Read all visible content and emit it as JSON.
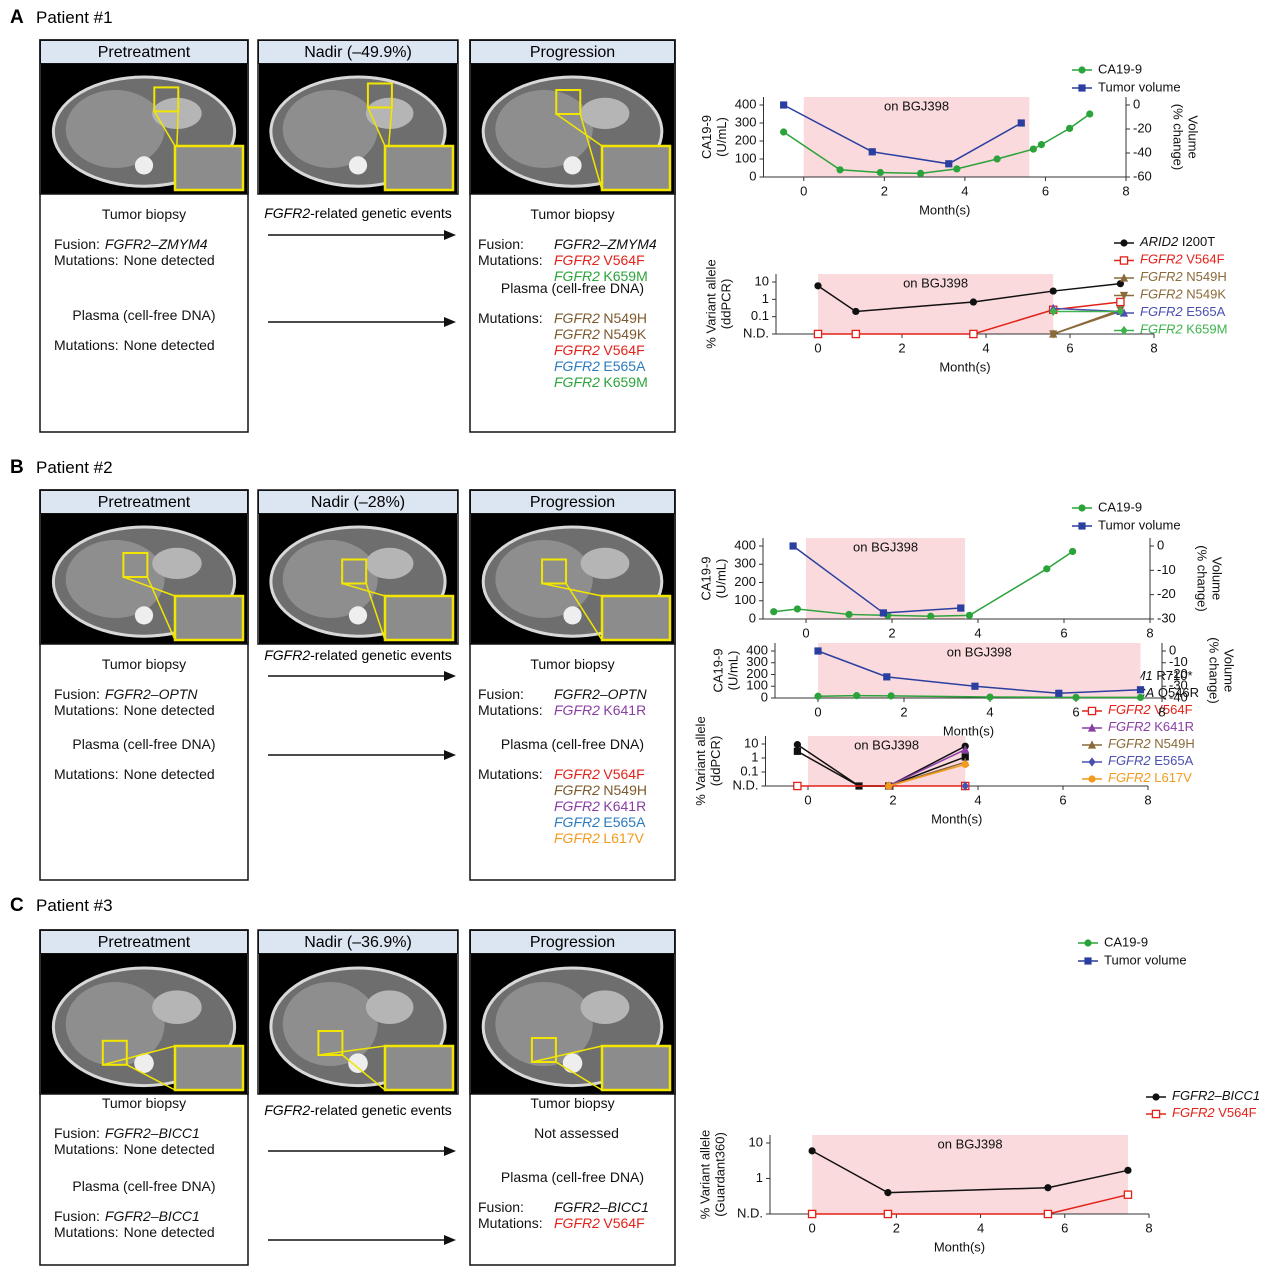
{
  "panels": [
    {
      "letter": "A",
      "title": "Patient #1",
      "stages": [
        "Pretreatment",
        "Nadir (–49.9%)",
        "Progression"
      ],
      "events": {
        "gene": "FGFR2",
        "text": "-related genetic events"
      },
      "before": {
        "biopsy": {
          "heading": "Tumor biopsy",
          "rows": [
            {
              "label": "Fusion:",
              "entries": [
                {
                  "gene": "FGFR2–ZMYM4"
                }
              ]
            },
            {
              "label": "Mutations:",
              "entries": [
                {
                  "text": "None detected"
                }
              ]
            }
          ]
        },
        "plasma": {
          "heading": "Plasma (cell-free DNA)",
          "rows": [
            {
              "label": "Mutations:",
              "entries": [
                {
                  "text": "None detected"
                }
              ]
            }
          ]
        }
      },
      "after": {
        "biopsy": {
          "heading": "Tumor biopsy",
          "rows": [
            {
              "label": "Fusion:",
              "entries": [
                {
                  "gene": "FGFR2–ZMYM4"
                }
              ]
            },
            {
              "label": "Mutations:",
              "entries": [
                {
                  "gene": "FGFR2",
                  "change": "V564F",
                  "color": "#e32119"
                },
                {
                  "gene": "FGFR2",
                  "change": "K659M",
                  "color": "#2aa33a"
                }
              ]
            }
          ]
        },
        "plasma": {
          "heading": "Plasma (cell-free DNA)",
          "rows": [
            {
              "label": "Mutations:",
              "entries": [
                {
                  "gene": "FGFR2",
                  "change": "N549H",
                  "color": "#7b5b2e"
                },
                {
                  "gene": "FGFR2",
                  "change": "N549K",
                  "color": "#7b5b2e"
                },
                {
                  "gene": "FGFR2",
                  "change": "V564F",
                  "color": "#e32119"
                },
                {
                  "gene": "FGFR2",
                  "change": "E565A",
                  "color": "#2b7bc1"
                },
                {
                  "gene": "FGFR2",
                  "change": "K659M",
                  "color": "#2aa33a"
                }
              ]
            }
          ]
        }
      }
    },
    {
      "letter": "B",
      "title": "Patient #2",
      "stages": [
        "Pretreatment",
        "Nadir (–28%)",
        "Progression"
      ],
      "events": {
        "gene": "FGFR2",
        "text": "-related genetic events"
      },
      "before": {
        "biopsy": {
          "heading": "Tumor biopsy",
          "rows": [
            {
              "label": "Fusion:",
              "entries": [
                {
                  "gene": "FGFR2–OPTN"
                }
              ]
            },
            {
              "label": "Mutations:",
              "entries": [
                {
                  "text": "None detected"
                }
              ]
            }
          ]
        },
        "plasma": {
          "heading": "Plasma (cell-free DNA)",
          "rows": [
            {
              "label": "Mutations:",
              "entries": [
                {
                  "text": "None detected"
                }
              ]
            }
          ]
        }
      },
      "after": {
        "biopsy": {
          "heading": "Tumor biopsy",
          "rows": [
            {
              "label": "Fusion:",
              "entries": [
                {
                  "gene": "FGFR2–OPTN"
                }
              ]
            },
            {
              "label": "Mutations:",
              "entries": [
                {
                  "gene": "FGFR2",
                  "change": "K641R",
                  "color": "#8a3ea5"
                }
              ]
            }
          ]
        },
        "plasma": {
          "heading": "Plasma (cell-free DNA)",
          "rows": [
            {
              "label": "Mutations:",
              "entries": [
                {
                  "gene": "FGFR2",
                  "change": "V564F",
                  "color": "#e32119"
                },
                {
                  "gene": "FGFR2",
                  "change": "N549H",
                  "color": "#7b5b2e"
                },
                {
                  "gene": "FGFR2",
                  "change": "K641R",
                  "color": "#8a3ea5"
                },
                {
                  "gene": "FGFR2",
                  "change": "E565A",
                  "color": "#2b7bc1"
                },
                {
                  "gene": "FGFR2",
                  "change": "L617V",
                  "color": "#f39a1e"
                }
              ]
            }
          ]
        }
      }
    },
    {
      "letter": "C",
      "title": "Patient #3",
      "stages": [
        "Pretreatment",
        "Nadir (–36.9%)",
        "Progression"
      ],
      "events": {
        "gene": "FGFR2",
        "text": "-related genetic events"
      },
      "before": {
        "biopsy": {
          "heading": "Tumor biopsy",
          "rows": [
            {
              "label": "Fusion:",
              "entries": [
                {
                  "gene": "FGFR2–BICC1"
                }
              ]
            },
            {
              "label": "Mutations:",
              "entries": [
                {
                  "text": "None detected"
                }
              ]
            }
          ]
        },
        "plasma": {
          "heading": "Plasma (cell-free DNA)",
          "rows": [
            {
              "label": "Fusion:",
              "entries": [
                {
                  "gene": "FGFR2–BICC1"
                }
              ]
            },
            {
              "label": "Mutations:",
              "entries": [
                {
                  "text": "None detected"
                }
              ]
            }
          ]
        }
      },
      "after": {
        "biopsy": {
          "heading": "Tumor biopsy",
          "rows": [
            {
              "entries": [
                {
                  "text": "Not assessed"
                }
              ]
            }
          ]
        },
        "plasma": {
          "heading": "Plasma (cell-free DNA)",
          "rows": [
            {
              "label": "Fusion:",
              "entries": [
                {
                  "gene": "FGFR2–BICC1"
                }
              ]
            },
            {
              "label": "Mutations:",
              "entries": [
                {
                  "gene": "FGFR2",
                  "change": "V564F",
                  "color": "#e32119"
                }
              ]
            }
          ]
        }
      }
    }
  ],
  "chart_data": [
    {
      "type": "line",
      "xlabel": "Month(s)",
      "ylabel": [
        "CA19-9",
        "(U/mL)"
      ],
      "y2label": [
        "Volume",
        "(% change)"
      ],
      "xlim": [
        -1,
        8
      ],
      "xticks": [
        0,
        2,
        4,
        6,
        8
      ],
      "ylim": [
        0,
        400
      ],
      "yticks": [
        0,
        100,
        200,
        300,
        400
      ],
      "y2lim": [
        -60,
        0
      ],
      "y2ticks": [
        0,
        -20,
        -40,
        -60
      ],
      "shade": {
        "label": "on BGJ398",
        "x": [
          0,
          5.6
        ],
        "color": "#fadadd"
      },
      "series": [
        {
          "name": "CA19-9",
          "color": "#2aa33a",
          "marker": "circle",
          "x": [
            -0.5,
            0.9,
            1.9,
            2.9,
            3.8,
            4.8,
            5.7,
            5.9,
            6.6,
            7.1
          ],
          "values": [
            250,
            40,
            25,
            20,
            45,
            100,
            155,
            180,
            270,
            350
          ]
        },
        {
          "name": "Tumor volume",
          "color": "#2b3fa0",
          "marker": "square",
          "axis": "y2",
          "x": [
            -0.5,
            1.7,
            3.6,
            5.4
          ],
          "values": [
            0,
            -39,
            -49,
            -15
          ]
        }
      ]
    },
    {
      "type": "line",
      "log_scale": true,
      "legend_genes": true,
      "xlabel": "Month(s)",
      "ylabel": [
        "% Variant allele",
        "(ddPCR)"
      ],
      "xlim": [
        -1,
        8
      ],
      "xticks": [
        0,
        2,
        4,
        6,
        8
      ],
      "ylim": [
        0.01,
        10
      ],
      "yticks": [
        {
          "value": 0.01,
          "label": "N.D."
        },
        0.1,
        1,
        10
      ],
      "shade": {
        "label": "on BGJ398",
        "x": [
          0,
          5.6
        ],
        "color": "#fadadd"
      },
      "series": [
        {
          "name": "ARID2 I200T",
          "color": "#111111",
          "marker": "circle",
          "x": [
            0,
            0.9,
            3.7,
            5.6,
            7.2
          ],
          "values": [
            6,
            0.2,
            0.7,
            3,
            8
          ]
        },
        {
          "name": "FGFR2 V564F",
          "color": "#e32119",
          "marker": "open-square",
          "x": [
            0,
            0.9,
            3.7,
            5.6,
            7.2
          ],
          "values": [
            0.01,
            0.01,
            0.01,
            0.25,
            0.7
          ]
        },
        {
          "name": "FGFR2 N549H",
          "color": "#8b6a3a",
          "marker": "triangle",
          "x": [
            5.6,
            7.2
          ],
          "values": [
            0.01,
            0.2
          ]
        },
        {
          "name": "FGFR2 N549K",
          "color": "#8b6a3a",
          "marker": "triangle-down",
          "x": [
            5.6,
            7.2
          ],
          "values": [
            0.01,
            0.25
          ]
        },
        {
          "name": "FGFR2 E565A",
          "color": "#4b4fb0",
          "marker": "triangle",
          "x": [
            5.6,
            7.2
          ],
          "values": [
            0.3,
            0.2
          ]
        },
        {
          "name": "FGFR2 K659M",
          "color": "#3cb44b",
          "marker": "diamond",
          "x": [
            5.6,
            7.2
          ],
          "values": [
            0.2,
            0.2
          ]
        }
      ]
    },
    {
      "type": "line",
      "xlabel": "Month(s)",
      "ylabel": [
        "CA19-9",
        "(U/mL)"
      ],
      "y2label": [
        "Volume",
        "(% change)"
      ],
      "xlim": [
        -1,
        8
      ],
      "xticks": [
        0,
        2,
        4,
        6,
        8
      ],
      "ylim": [
        0,
        400
      ],
      "yticks": [
        0,
        100,
        200,
        300,
        400
      ],
      "y2lim": [
        -30,
        0
      ],
      "y2ticks": [
        0,
        -10,
        -20,
        -30
      ],
      "shade": {
        "label": "on BGJ398",
        "x": [
          0,
          3.7
        ],
        "color": "#fadadd"
      },
      "series": [
        {
          "name": "CA19-9",
          "color": "#2aa33a",
          "marker": "circle",
          "x": [
            -0.75,
            -0.2,
            1,
            1.9,
            2.9,
            3.8,
            5.6,
            6.2
          ],
          "values": [
            40,
            55,
            25,
            20,
            15,
            20,
            275,
            370
          ]
        },
        {
          "name": "Tumor volume",
          "color": "#2b3fa0",
          "marker": "square",
          "axis": "y2",
          "x": [
            -0.3,
            1.8,
            3.6
          ],
          "values": [
            0,
            -27.5,
            -25.5
          ]
        }
      ]
    },
    {
      "type": "line",
      "log_scale": true,
      "legend_genes": true,
      "xlabel": "Month(s)",
      "ylabel": [
        "% Variant allele",
        "(ddPCR)"
      ],
      "xlim": [
        -1,
        8
      ],
      "xticks": [
        0,
        2,
        4,
        6,
        8
      ],
      "ylim": [
        0.01,
        10
      ],
      "yticks": [
        {
          "value": 0.01,
          "label": "N.D."
        },
        0.1,
        1,
        10
      ],
      "shade": {
        "label": "on BGJ398",
        "x": [
          0,
          3.7
        ],
        "color": "#fadadd"
      },
      "series": [
        {
          "name": "PBRM1 R710*",
          "color": "#111111",
          "marker": "circle",
          "x": [
            -0.25,
            1.2,
            1.9,
            3.7
          ],
          "values": [
            9,
            0.01,
            0.01,
            7
          ]
        },
        {
          "name": "PIK3CA Q546R",
          "color": "#111111",
          "marker": "square",
          "x": [
            -0.25,
            1.2,
            1.9,
            3.7
          ],
          "values": [
            3,
            0.01,
            0.01,
            1.2
          ]
        },
        {
          "name": "FGFR2 V564F",
          "color": "#e32119",
          "marker": "open-square",
          "x": [
            -0.25,
            3.7
          ],
          "values": [
            0.01,
            0.01
          ]
        },
        {
          "name": "FGFR2 K641R",
          "color": "#8a3ea5",
          "marker": "triangle",
          "x": [
            1.9,
            3.7
          ],
          "values": [
            0.01,
            4
          ]
        },
        {
          "name": "FGFR2 N549H",
          "color": "#8b6a3a",
          "marker": "triangle",
          "x": [
            1.9,
            3.7
          ],
          "values": [
            0.01,
            0.5
          ]
        },
        {
          "name": "FGFR2 E565A",
          "color": "#4b4fb0",
          "marker": "diamond",
          "x": [
            3.7
          ],
          "values": [
            0.01
          ]
        },
        {
          "name": "FGFR2 L617V",
          "color": "#f39a1e",
          "marker": "circle",
          "x": [
            1.9,
            3.7
          ],
          "values": [
            0.01,
            0.35
          ]
        }
      ]
    },
    {
      "type": "line",
      "xlabel": "Month(s)",
      "ylabel": [
        "CA19-9",
        "(U/mL)"
      ],
      "y2label": [
        "Volume",
        "(% change)"
      ],
      "xlim": [
        -1,
        8
      ],
      "xticks": [
        0,
        2,
        4,
        6,
        8
      ],
      "ylim": [
        0,
        400
      ],
      "yticks": [
        0,
        100,
        200,
        300,
        400
      ],
      "y2lim": [
        -40,
        0
      ],
      "y2ticks": [
        0,
        -10,
        -20,
        -30,
        -40
      ],
      "shade": {
        "label": "on BGJ398",
        "x": [
          0,
          7.5
        ],
        "color": "#fadadd"
      },
      "series": [
        {
          "name": "CA19-9",
          "color": "#2aa33a",
          "marker": "circle",
          "x": [
            0,
            0.9,
            1.7,
            4,
            6,
            7.5
          ],
          "values": [
            15,
            20,
            18,
            8,
            5,
            5
          ]
        },
        {
          "name": "Tumor volume",
          "color": "#2b3fa0",
          "marker": "square",
          "axis": "y2",
          "x": [
            0,
            1.6,
            3.65,
            5.6,
            7.5
          ],
          "values": [
            0,
            -22,
            -30,
            -36,
            -33
          ]
        }
      ]
    },
    {
      "type": "line",
      "log_scale": true,
      "legend_genes": true,
      "xlabel": "Month(s)",
      "ylabel": [
        "% Variant allele",
        "(Guardant360)"
      ],
      "xlim": [
        -1,
        8
      ],
      "xticks": [
        0,
        2,
        4,
        6,
        8
      ],
      "ylim": [
        0.1,
        10
      ],
      "yticks": [
        {
          "value": 0.1,
          "label": "N.D."
        },
        1,
        10
      ],
      "shade": {
        "label": "on BGJ398",
        "x": [
          0,
          7.5
        ],
        "color": "#fadadd"
      },
      "series": [
        {
          "name": "FGFR2–BICC1",
          "color": "#111111",
          "marker": "circle",
          "x": [
            0,
            1.8,
            5.6,
            7.5
          ],
          "values": [
            6,
            0.4,
            0.55,
            1.7
          ]
        },
        {
          "name": "FGFR2 V564F",
          "color": "#e32119",
          "marker": "open-square",
          "x": [
            0,
            1.8,
            5.6,
            7.5
          ],
          "values": [
            0.1,
            0.1,
            0.1,
            0.35
          ]
        }
      ]
    }
  ]
}
